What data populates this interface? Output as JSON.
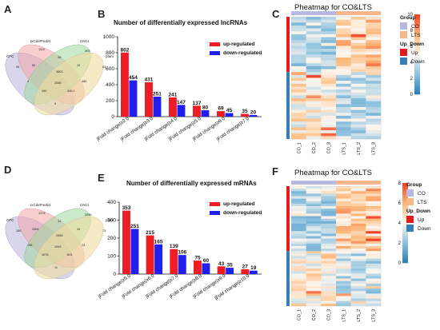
{
  "panels": {
    "A": {
      "letter": "A",
      "venn": {
        "sets": [
          "CPC",
          "txCdsPredict",
          "CNCI",
          "pfam"
        ],
        "region_values": [
          "1119",
          "95",
          "309",
          "83",
          "28",
          "59",
          "19",
          "3600",
          "4",
          "2085",
          "485",
          "190",
          "340.0",
          "9"
        ]
      }
    },
    "B": {
      "letter": "B",
      "chart_data": {
        "type": "bar",
        "title": "Number of differentially expressed lncRNAs",
        "categories": [
          "|Fold change|≥2.0",
          "|Fold change|≥3.0",
          "|Fold change|≥4.0",
          "|Fold change|≥5.0",
          "|Fold change|≥6.0",
          "|Fold change|≥7.0"
        ],
        "series": [
          {
            "name": "up-regulated",
            "color": "#ee1c24",
            "values": [
              802,
              431,
              241,
              137,
              69,
              35
            ]
          },
          {
            "name": "down-regulated",
            "color": "#1f1ff0",
            "values": [
              454,
              251,
              147,
              80,
              45,
              20
            ]
          }
        ],
        "ylim": [
          0,
          1000
        ],
        "yticks": [
          0,
          200,
          400,
          600,
          800,
          1000
        ],
        "legend": "top-right"
      }
    },
    "C": {
      "letter": "C",
      "title": "Pheatmap for CO&LTS",
      "columns": [
        "CO_1",
        "CO_2",
        "CO_3",
        "LTS_1",
        "LTS_2",
        "LTS_3"
      ],
      "colorbar": {
        "ticks": [
          "10",
          "8",
          "6",
          "4",
          "2",
          "0"
        ],
        "colors": [
          "#f5412a",
          "#fdb97a",
          "#fdf6ef",
          "#8fc3df",
          "#2b83ba"
        ]
      },
      "group_legend": {
        "title": "Group",
        "items": [
          {
            "label": "CO",
            "color": "#b9b8e0"
          },
          {
            "label": "LTS",
            "color": "#f7b78a"
          }
        ]
      },
      "updown_legend": {
        "title": "Up_Down",
        "items": [
          {
            "label": "Up",
            "color": "#e41a1c"
          },
          {
            "label": "Down",
            "color": "#377eb8"
          }
        ]
      }
    },
    "D": {
      "letter": "D",
      "venn": {
        "sets": [
          "CPC",
          "txCdsPredict",
          "CNCI",
          "pfam"
        ],
        "region_values": [
          "1378",
          "186",
          "3955",
          "73",
          "14",
          "2064",
          "19",
          "2555",
          "136",
          "1063",
          "23",
          "1078",
          "843",
          "11"
        ]
      }
    },
    "E": {
      "letter": "E",
      "chart_data": {
        "type": "bar",
        "title": "Number of differentially expressed mRNAs",
        "categories": [
          "|Fold change|≥5.0",
          "|Fold change|≥6.0",
          "|Fold change|≥7.0",
          "|Fold change|≥8.0",
          "|Fold change|≥9.0",
          "|Fold change|≥10.0"
        ],
        "series": [
          {
            "name": "up-regulated",
            "color": "#ee1c24",
            "values": [
              353,
              215,
              139,
              75,
              43,
              27
            ]
          },
          {
            "name": "down-regulated",
            "color": "#1f1ff0",
            "values": [
              251,
              165,
              106,
              60,
              35,
              19
            ]
          }
        ],
        "ylim": [
          0,
          400
        ],
        "yticks": [
          0,
          100,
          200,
          300,
          400
        ],
        "legend": "top-right"
      }
    },
    "F": {
      "letter": "F",
      "title": "Pheatmap for CO&LTS",
      "columns": [
        "CO_1",
        "CO_2",
        "CO_3",
        "LTS_1",
        "LTS_2",
        "LTS_3"
      ],
      "colorbar": {
        "ticks": [
          "8",
          "6",
          "4",
          "2",
          "0"
        ],
        "colors": [
          "#f5412a",
          "#fdb97a",
          "#fdf6ef",
          "#8fc3df",
          "#2b83ba"
        ]
      },
      "group_legend": {
        "title": "Group",
        "items": [
          {
            "label": "CO",
            "color": "#b9b8e0"
          },
          {
            "label": "LTS",
            "color": "#f7b78a"
          }
        ]
      },
      "updown_legend": {
        "title": "Up_Down",
        "items": [
          {
            "label": "Up",
            "color": "#e41a1c"
          },
          {
            "label": "Down",
            "color": "#377eb8"
          }
        ]
      }
    }
  }
}
